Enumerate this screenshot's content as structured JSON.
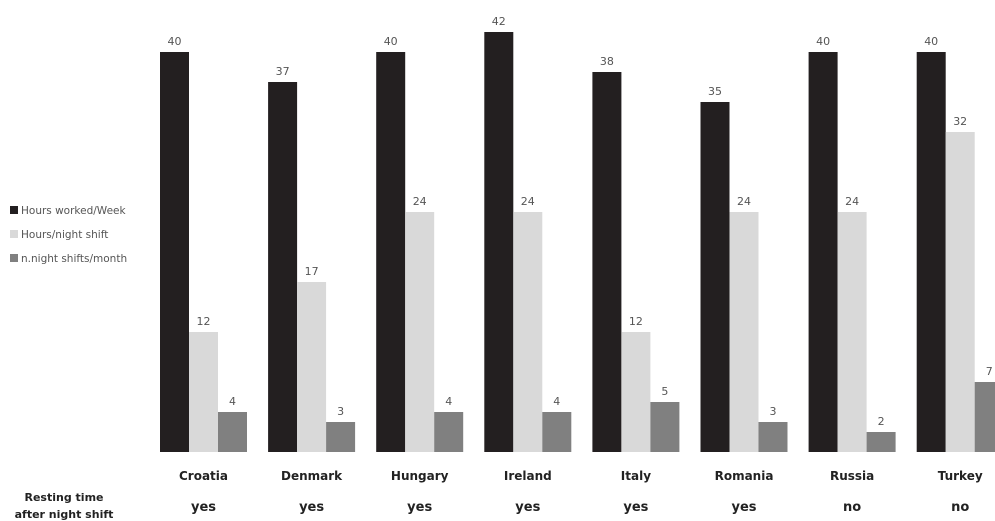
{
  "chart_data": {
    "type": "bar",
    "categories": [
      "Croatia",
      "Denmark",
      "Hungary",
      "Ireland",
      "Italy",
      "Romania",
      "Russia",
      "Turkey"
    ],
    "series": [
      {
        "name": "Hours worked/Week",
        "color": "#231f20",
        "values": [
          40,
          37,
          40,
          42,
          38,
          35,
          40,
          40
        ]
      },
      {
        "name": "Hours/night shift",
        "color": "#d9d9d9",
        "values": [
          12,
          17,
          24,
          24,
          12,
          24,
          24,
          32
        ]
      },
      {
        "name": "n.night shifts/month",
        "color": "#808080",
        "values": [
          4,
          3,
          4,
          4,
          5,
          3,
          2,
          7
        ]
      }
    ],
    "legend_position": "left",
    "grid": false,
    "ylim": [
      0,
      42
    ],
    "resting_time": {
      "label_line1": "Resting time",
      "label_line2": "after night shift",
      "values": [
        "yes",
        "yes",
        "yes",
        "yes",
        "yes",
        "yes",
        "no",
        "no"
      ]
    }
  }
}
